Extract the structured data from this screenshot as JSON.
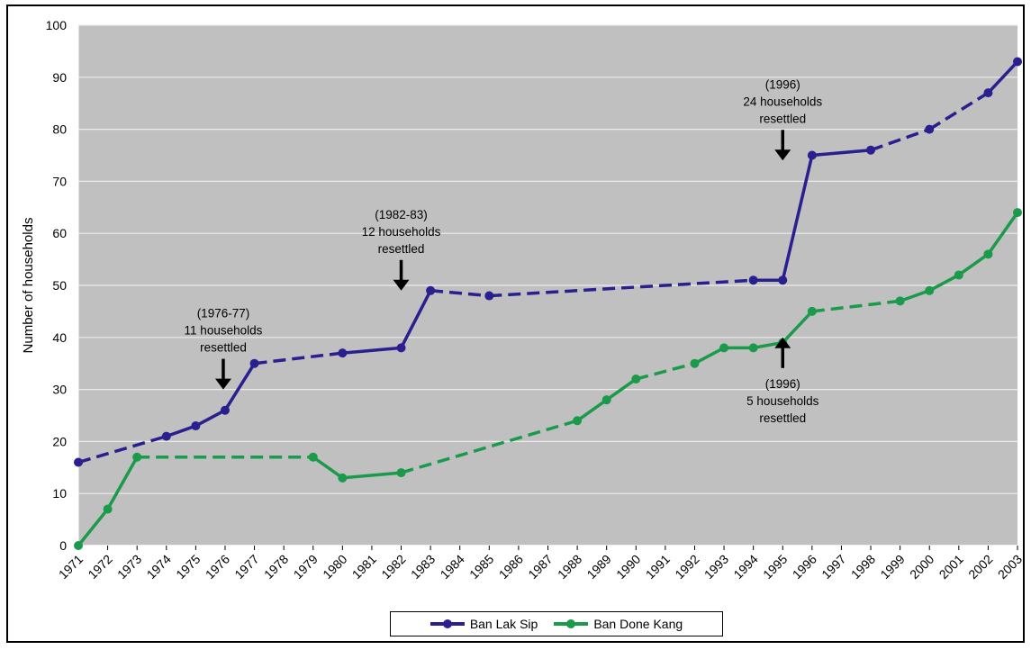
{
  "chart_data": {
    "type": "line",
    "ylabel": "Number of households",
    "ylim": [
      0,
      100
    ],
    "yticks": [
      0,
      10,
      20,
      30,
      40,
      50,
      60,
      70,
      80,
      90,
      100
    ],
    "categories": [
      "1971",
      "1972",
      "1973",
      "1974",
      "1975",
      "1976",
      "1977",
      "1978",
      "1979",
      "1980",
      "1981",
      "1982",
      "1983",
      "1984",
      "1985",
      "1986",
      "1987",
      "1988",
      "1989",
      "1990",
      "1991",
      "1992",
      "1993",
      "1994",
      "1995",
      "1996",
      "1997",
      "1998",
      "1999",
      "2000",
      "2001",
      "2002",
      "2003"
    ],
    "grid": true,
    "legend_position": "bottom",
    "background_color": "#c0c0c0",
    "series": [
      {
        "name": "Ban Lak Sip",
        "color": "#2a1f8f",
        "points": [
          {
            "x": "1971",
            "y": 16
          },
          {
            "x": "1974",
            "y": 21
          },
          {
            "x": "1975",
            "y": 23
          },
          {
            "x": "1976",
            "y": 26
          },
          {
            "x": "1977",
            "y": 35
          },
          {
            "x": "1980",
            "y": 37
          },
          {
            "x": "1982",
            "y": 38
          },
          {
            "x": "1983",
            "y": 49
          },
          {
            "x": "1985",
            "y": 48
          },
          {
            "x": "1994",
            "y": 51
          },
          {
            "x": "1995",
            "y": 51
          },
          {
            "x": "1996",
            "y": 75
          },
          {
            "x": "1998",
            "y": 76
          },
          {
            "x": "2000",
            "y": 80
          },
          {
            "x": "2002",
            "y": 87
          },
          {
            "x": "2003",
            "y": 93
          }
        ],
        "segment_styles": [
          "dashed",
          "solid",
          "solid",
          "solid",
          "dashed",
          "solid",
          "solid",
          "dashed",
          "dashed",
          "solid",
          "solid",
          "solid",
          "dashed",
          "dashed",
          "solid"
        ]
      },
      {
        "name": "Ban Done Kang",
        "color": "#1a9a4a",
        "points": [
          {
            "x": "1971",
            "y": 0
          },
          {
            "x": "1972",
            "y": 7
          },
          {
            "x": "1973",
            "y": 17
          },
          {
            "x": "1979",
            "y": 17
          },
          {
            "x": "1980",
            "y": 13
          },
          {
            "x": "1982",
            "y": 14
          },
          {
            "x": "1988",
            "y": 24
          },
          {
            "x": "1989",
            "y": 28
          },
          {
            "x": "1990",
            "y": 32
          },
          {
            "x": "1992",
            "y": 35
          },
          {
            "x": "1993",
            "y": 38
          },
          {
            "x": "1994",
            "y": 38
          },
          {
            "x": "1995",
            "y": 39
          },
          {
            "x": "1996",
            "y": 45
          },
          {
            "x": "1999",
            "y": 47
          },
          {
            "x": "2000",
            "y": 49
          },
          {
            "x": "2001",
            "y": 52
          },
          {
            "x": "2002",
            "y": 56
          },
          {
            "x": "2003",
            "y": 64
          }
        ],
        "segment_styles": [
          "solid",
          "solid",
          "dashed",
          "solid",
          "solid",
          "dashed",
          "solid",
          "solid",
          "dashed",
          "solid",
          "solid",
          "solid",
          "solid",
          "dashed",
          "solid",
          "solid",
          "solid",
          "solid"
        ]
      }
    ],
    "annotations": [
      {
        "lines": [
          "(1976-77)",
          "11 households",
          "resettled"
        ],
        "x": "1976",
        "arrow": "down",
        "arrow_y": 30
      },
      {
        "lines": [
          "(1982-83)",
          "12 households",
          "resettled"
        ],
        "x": "1982",
        "arrow": "down",
        "arrow_y": 49
      },
      {
        "lines": [
          "(1996)",
          "24 households",
          "resettled"
        ],
        "x": "1995",
        "arrow": "down",
        "arrow_y": 74
      },
      {
        "lines": [
          "(1996)",
          "5 households",
          "resettled"
        ],
        "x": "1995",
        "arrow": "up",
        "arrow_y": 40
      }
    ]
  }
}
